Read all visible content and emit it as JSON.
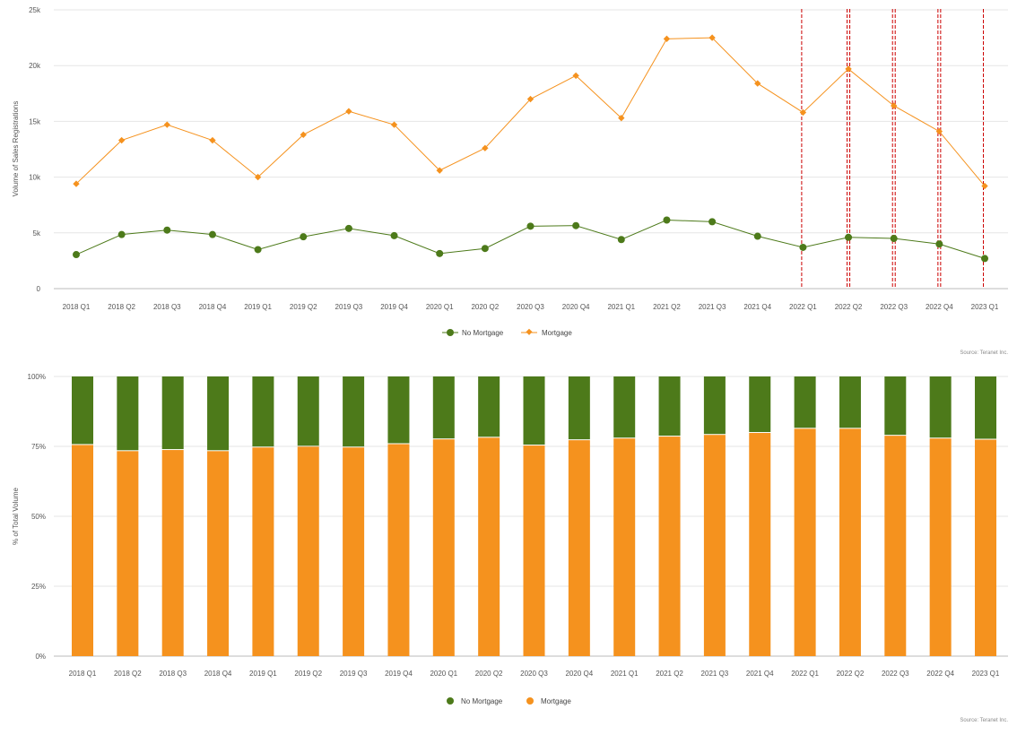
{
  "colors": {
    "no_mortgage": "#4d7a1a",
    "mortgage": "#f5921e",
    "grid": "#e6e6e6",
    "marker_line": "#cc0000"
  },
  "source_top": "Source: Teranet Inc.",
  "source_bottom": "Source: Teranet Inc.",
  "chart_data": [
    {
      "type": "line",
      "categories": [
        "2018 Q1",
        "2018 Q2",
        "2018 Q3",
        "2018 Q4",
        "2019 Q1",
        "2019 Q2",
        "2019 Q3",
        "2019 Q4",
        "2020 Q1",
        "2020 Q2",
        "2020 Q3",
        "2020 Q4",
        "2021 Q1",
        "2021 Q2",
        "2021 Q3",
        "2021 Q4",
        "2022 Q1",
        "2022 Q2",
        "2022 Q3",
        "2022 Q4",
        "2023 Q1"
      ],
      "series": [
        {
          "name": "No Mortgage",
          "values": [
            3050,
            4850,
            5250,
            4850,
            3500,
            4650,
            5400,
            4750,
            3150,
            3600,
            5600,
            5650,
            4400,
            6150,
            6000,
            4700,
            3700,
            4600,
            4500,
            4000,
            2700
          ]
        },
        {
          "name": "Mortgage",
          "values": [
            9400,
            13300,
            14700,
            13300,
            10000,
            13800,
            15900,
            14700,
            10600,
            12600,
            17000,
            19100,
            15300,
            22400,
            22500,
            18400,
            15800,
            19700,
            16400,
            14100,
            9200
          ]
        }
      ],
      "ylabel": "Volume of Sales Registrations",
      "ylim": [
        0,
        25000
      ],
      "yticks": [
        "0",
        "5k",
        "10k",
        "15k",
        "20k",
        "25k"
      ],
      "reference_lines_at": [
        "2022 Q1",
        "2022 Q2",
        "2022 Q3",
        "2022 Q4",
        "2023 Q1"
      ],
      "legend": [
        "No Mortgage",
        "Mortgage"
      ],
      "legend_position": "bottom-center",
      "grid": true
    },
    {
      "type": "bar",
      "stacked": true,
      "categories": [
        "2018 Q1",
        "2018 Q2",
        "2018 Q3",
        "2018 Q4",
        "2019 Q1",
        "2019 Q2",
        "2019 Q3",
        "2019 Q4",
        "2020 Q1",
        "2020 Q2",
        "2020 Q3",
        "2020 Q4",
        "2021 Q1",
        "2021 Q2",
        "2021 Q3",
        "2021 Q4",
        "2022 Q1",
        "2022 Q2",
        "2022 Q3",
        "2022 Q4",
        "2023 Q1"
      ],
      "series": [
        {
          "name": "Mortgage",
          "values": [
            75.5,
            73.3,
            73.7,
            73.3,
            74.6,
            74.9,
            74.6,
            75.8,
            77.5,
            78.1,
            75.3,
            77.2,
            77.8,
            78.5,
            79.1,
            79.8,
            81.3,
            81.3,
            78.8,
            77.8,
            77.4
          ]
        },
        {
          "name": "No Mortgage",
          "values": [
            24.5,
            26.7,
            26.3,
            26.7,
            25.4,
            25.1,
            25.4,
            24.2,
            22.5,
            21.9,
            24.7,
            22.8,
            22.2,
            21.5,
            20.9,
            20.2,
            18.7,
            18.7,
            21.2,
            22.2,
            22.6
          ]
        }
      ],
      "ylabel": "% of Total Volume",
      "ylim": [
        0,
        100
      ],
      "yticks": [
        "0%",
        "25%",
        "50%",
        "75%",
        "100%"
      ],
      "legend": [
        "No Mortgage",
        "Mortgage"
      ],
      "legend_position": "bottom-center",
      "grid": true
    }
  ]
}
